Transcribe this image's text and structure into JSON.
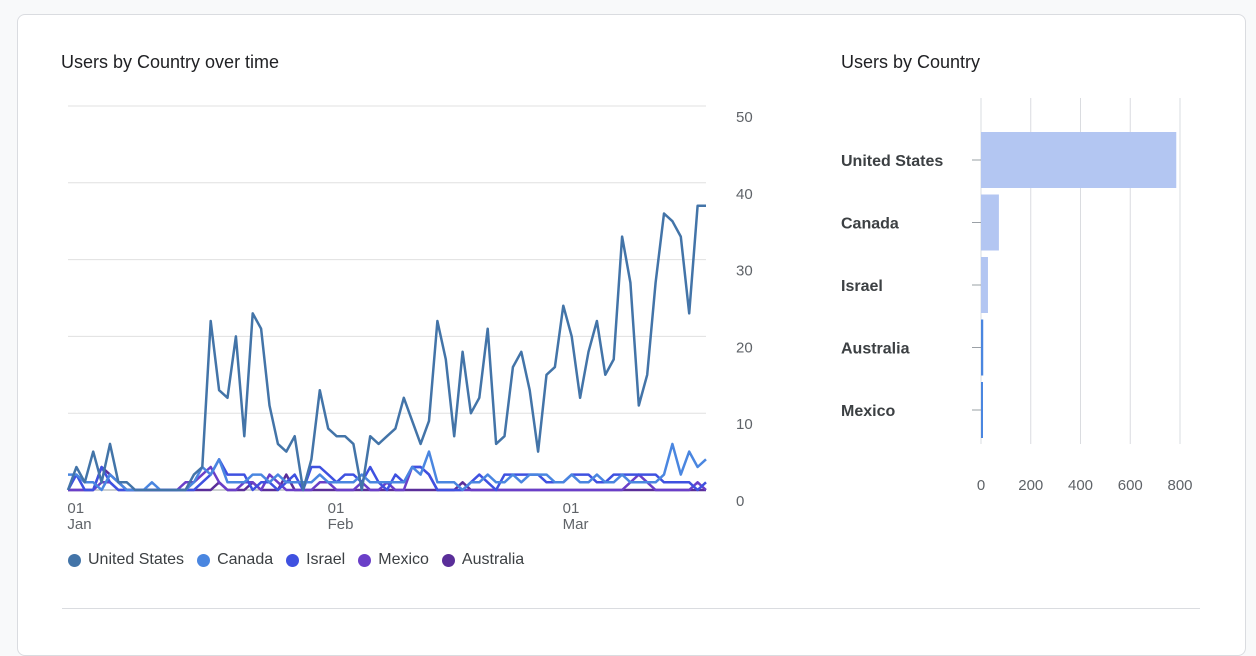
{
  "chart_data": [
    {
      "type": "line",
      "title": "Users by Country over time",
      "ylim": [
        0,
        50
      ],
      "y_ticks": [
        "0",
        "10",
        "20",
        "30",
        "40",
        "50"
      ],
      "x_ticks": [
        {
          "top": "01",
          "bottom": "Jan",
          "index": 1
        },
        {
          "top": "01",
          "bottom": "Feb",
          "index": 32
        },
        {
          "top": "01",
          "bottom": "Mar",
          "index": 60
        }
      ],
      "series": [
        {
          "name": "United States",
          "color": "#4374a8",
          "values": [
            0,
            3,
            1,
            5,
            1,
            6,
            1,
            1,
            0,
            0,
            0,
            0,
            0,
            0,
            0,
            2,
            3,
            22,
            13,
            12,
            20,
            7,
            23,
            21,
            11,
            6,
            5,
            7,
            0,
            4,
            13,
            8,
            7,
            7,
            6,
            0,
            7,
            6,
            7,
            8,
            12,
            9,
            6,
            9,
            22,
            17,
            7,
            18,
            10,
            12,
            21,
            6,
            7,
            16,
            18,
            13,
            5,
            15,
            16,
            24,
            20,
            12,
            18,
            22,
            15,
            17,
            33,
            27,
            11,
            15,
            27,
            36,
            35,
            33,
            23,
            37,
            37
          ]
        },
        {
          "name": "Canada",
          "color": "#4a86e0",
          "values": [
            2,
            2,
            1,
            1,
            0,
            2,
            1,
            0,
            0,
            0,
            1,
            0,
            0,
            0,
            0,
            1,
            3,
            2,
            4,
            1,
            1,
            1,
            2,
            2,
            1,
            2,
            1,
            1,
            1,
            1,
            2,
            1,
            1,
            1,
            1,
            2,
            1,
            1,
            1,
            1,
            1,
            3,
            2,
            5,
            1,
            1,
            1,
            0,
            1,
            1,
            2,
            1,
            1,
            2,
            1,
            2,
            2,
            2,
            1,
            1,
            2,
            1,
            1,
            2,
            1,
            1,
            2,
            1,
            1,
            1,
            1,
            2,
            6,
            2,
            5,
            3,
            4
          ]
        },
        {
          "name": "Israel",
          "color": "#3f51e0",
          "values": [
            0,
            2,
            0,
            0,
            3,
            1,
            0,
            0,
            0,
            0,
            0,
            0,
            0,
            0,
            0,
            0,
            1,
            2,
            4,
            2,
            2,
            2,
            0,
            1,
            1,
            0,
            1,
            2,
            0,
            3,
            3,
            2,
            1,
            2,
            2,
            1,
            3,
            1,
            0,
            2,
            1,
            3,
            3,
            2,
            0,
            0,
            0,
            0,
            1,
            2,
            1,
            0,
            2,
            2,
            2,
            2,
            2,
            1,
            1,
            1,
            2,
            2,
            2,
            1,
            1,
            2,
            2,
            2,
            2,
            2,
            2,
            1,
            1,
            1,
            1,
            0,
            1
          ]
        },
        {
          "name": "Mexico",
          "color": "#6a3fc8",
          "values": [
            0,
            0,
            0,
            0,
            1,
            1,
            0,
            0,
            0,
            0,
            0,
            0,
            0,
            0,
            1,
            1,
            2,
            3,
            1,
            0,
            0,
            1,
            1,
            0,
            2,
            1,
            0,
            0,
            0,
            0,
            1,
            1,
            0,
            0,
            0,
            1,
            0,
            0,
            1,
            0,
            0,
            3,
            3,
            2,
            0,
            0,
            0,
            0,
            0,
            0,
            0,
            0,
            0,
            0,
            0,
            0,
            0,
            0,
            0,
            0,
            0,
            0,
            0,
            0,
            0,
            0,
            0,
            1,
            2,
            1,
            0,
            0,
            0,
            0,
            0,
            1,
            0
          ]
        },
        {
          "name": "Australia",
          "color": "#5a2e99",
          "values": [
            0,
            0,
            0,
            0,
            3,
            2,
            1,
            0,
            0,
            0,
            0,
            0,
            0,
            0,
            0,
            0,
            0,
            0,
            1,
            0,
            0,
            0,
            1,
            0,
            0,
            0,
            2,
            0,
            0,
            0,
            0,
            0,
            0,
            0,
            0,
            0,
            0,
            0,
            0,
            0,
            0,
            0,
            0,
            0,
            0,
            0,
            0,
            1,
            0,
            0,
            0,
            0,
            0,
            0,
            0,
            0,
            0,
            0,
            0,
            0,
            0,
            0,
            0,
            0,
            0,
            0,
            0,
            0,
            0,
            0,
            0,
            0,
            0,
            0,
            0,
            0,
            0
          ]
        }
      ],
      "legend_position": "bottom-left",
      "grid": true
    },
    {
      "type": "bar",
      "orientation": "horizontal",
      "title": "Users by Country",
      "categories": [
        "United States",
        "Canada",
        "Israel",
        "Australia",
        "Mexico"
      ],
      "values": [
        785,
        72,
        28,
        9,
        7
      ],
      "xlim": [
        0,
        800
      ],
      "x_ticks": [
        "0",
        "200",
        "400",
        "600",
        "800"
      ],
      "bar_color": "#b3c6f2",
      "highlight_color": "#4a86e0",
      "grid": true
    }
  ]
}
